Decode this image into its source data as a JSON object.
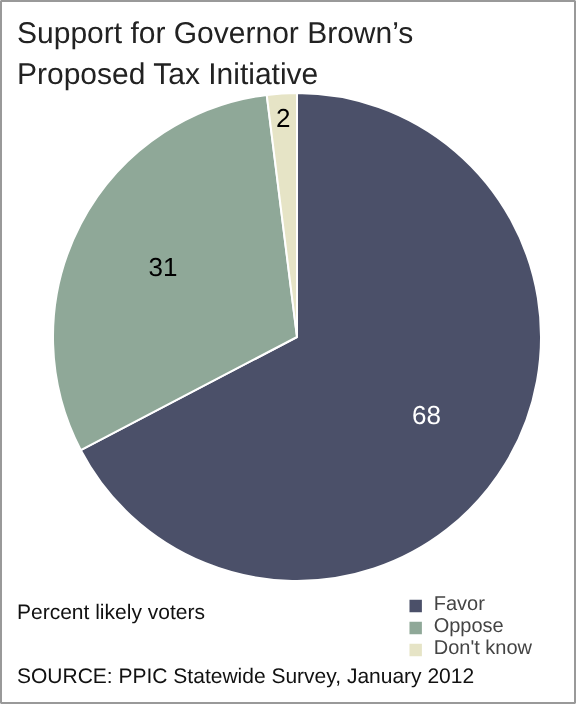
{
  "chart_data": {
    "type": "pie",
    "title": "Support for Governor Brown’s Proposed Tax Initiative",
    "categories": [
      "Favor",
      "Oppose",
      "Don't know"
    ],
    "values": [
      68,
      31,
      2
    ],
    "colors": [
      "#4b5069",
      "#8fa898",
      "#e6e4c6"
    ],
    "data_labels": true,
    "legend": "bottom right",
    "annotations": [
      "Percent likely voters",
      "SOURCE: PPIC Statewide Survey, January 2012"
    ]
  }
}
